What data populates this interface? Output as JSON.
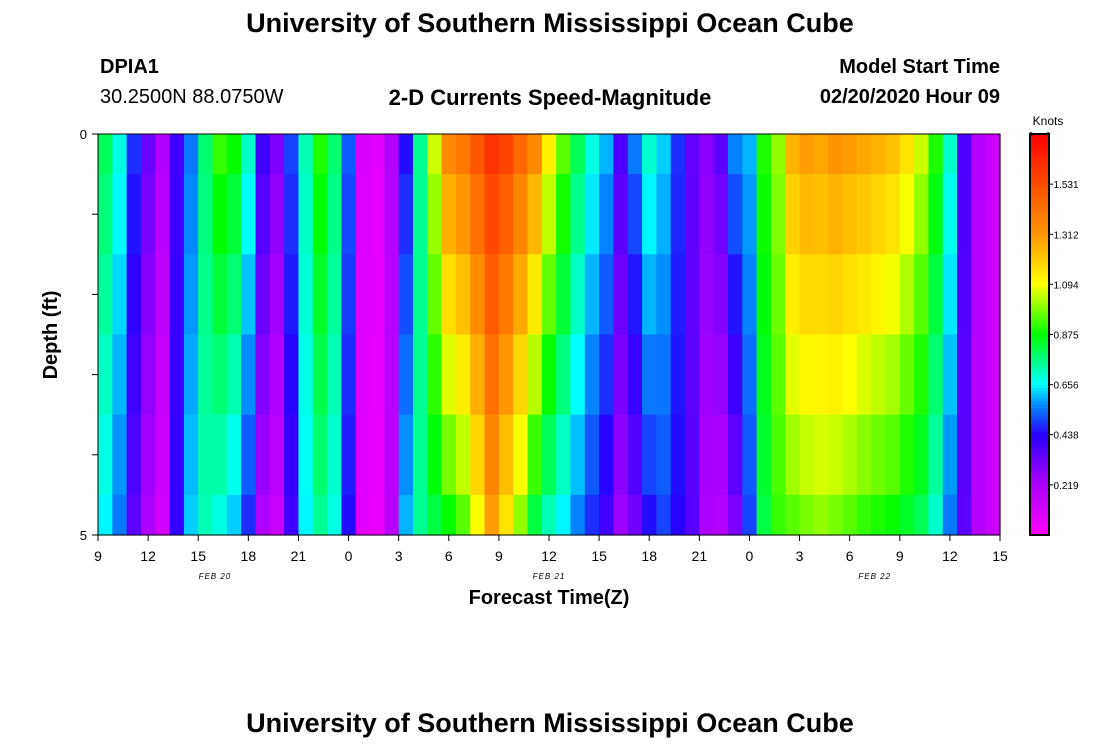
{
  "header": {
    "title": "University of Southern Mississippi Ocean Cube",
    "station_id": "DPIA1",
    "station_coords": "30.2500N 88.0750W",
    "plot_title": "2-D Currents Speed-Magnitude",
    "model_start_label": "Model Start Time",
    "model_start_value": "02/20/2020 Hour 09"
  },
  "footer": {
    "title": "University of Southern Mississippi Ocean Cube"
  },
  "chart_data": {
    "type": "heatmap",
    "title": "2-D Currents Speed-Magnitude",
    "xlabel": "Forecast Time(Z)",
    "ylabel": "Depth (ft)",
    "x_tick_labels": [
      "9",
      "12",
      "15",
      "18",
      "21",
      "0",
      "3",
      "6",
      "9",
      "12",
      "15",
      "18",
      "21",
      "0",
      "3",
      "6",
      "9",
      "12",
      "15"
    ],
    "date_labels": [
      {
        "label": "FEB 20",
        "hour_index": 7
      },
      {
        "label": "FEB 21",
        "hour_index": 27
      },
      {
        "label": "FEB 22",
        "hour_index": 46.5
      }
    ],
    "x_start": "02/20/2020 09Z",
    "x_end": "02/22/2020 15Z",
    "x_step_hours": 1,
    "y_tick_labels": [
      "0",
      "",
      "",
      "",
      "",
      "5"
    ],
    "ylim": [
      0,
      5
    ],
    "depth_rows": [
      "0-0.5",
      "0.5-1.5",
      "1.5-2.5",
      "2.5-3.5",
      "3.5-4.5",
      "4.5-5"
    ],
    "colorbar": {
      "title": "Knots",
      "min": 0,
      "max": 1.75,
      "ticks": [
        "1.531",
        "1.312",
        "1.094",
        "0.875",
        "0.656",
        "0.438",
        "0.219"
      ],
      "tick_values": [
        1.531,
        1.312,
        1.094,
        0.875,
        0.656,
        0.438,
        0.219
      ],
      "colormap": "rainbow: magenta-purple-blue-cyan-green-yellow-orange-red"
    },
    "surface_speed_knots": [
      0.8,
      0.68,
      0.48,
      0.33,
      0.2,
      0.4,
      0.55,
      0.78,
      0.92,
      0.88,
      0.7,
      0.4,
      0.3,
      0.5,
      0.72,
      0.9,
      0.78,
      0.52,
      0.1,
      0.08,
      0.2,
      0.45,
      0.75,
      1.05,
      1.35,
      1.4,
      1.5,
      1.6,
      1.55,
      1.45,
      1.35,
      1.12,
      0.95,
      0.8,
      0.68,
      0.6,
      0.38,
      0.55,
      0.7,
      0.62,
      0.48,
      0.34,
      0.28,
      0.35,
      0.56,
      0.6,
      0.9,
      1.0,
      1.25,
      1.3,
      1.28,
      1.32,
      1.3,
      1.28,
      1.25,
      1.22,
      1.15,
      1.05,
      0.9,
      0.7,
      0.38,
      0.2,
      0.15
    ],
    "bottom_speed_knots": [
      0.65,
      0.55,
      0.35,
      0.22,
      0.12,
      0.42,
      0.62,
      0.72,
      0.68,
      0.62,
      0.48,
      0.22,
      0.15,
      0.4,
      0.65,
      0.75,
      0.68,
      0.45,
      0.08,
      0.06,
      0.18,
      0.6,
      0.75,
      0.82,
      0.88,
      0.95,
      1.1,
      1.3,
      1.15,
      1.0,
      0.82,
      0.72,
      0.65,
      0.56,
      0.48,
      0.4,
      0.25,
      0.32,
      0.45,
      0.5,
      0.44,
      0.36,
      0.22,
      0.2,
      0.3,
      0.5,
      0.82,
      0.92,
      0.95,
      0.98,
      1.0,
      0.98,
      0.95,
      0.92,
      0.9,
      0.88,
      0.84,
      0.8,
      0.7,
      0.55,
      0.35,
      0.2,
      0.15
    ],
    "grid": false
  }
}
